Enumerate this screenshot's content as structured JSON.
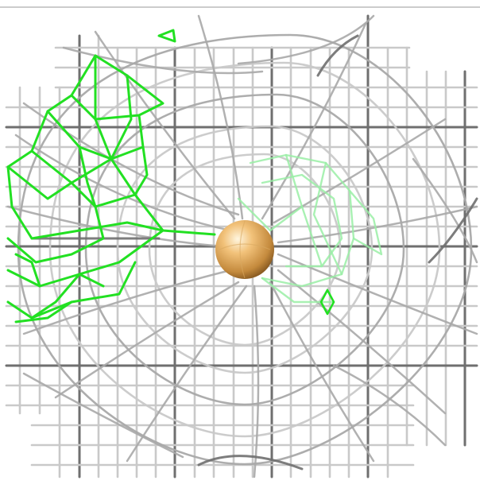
{
  "scene": {
    "kind": "3D molecular density mesh rendering",
    "background_color": "#ffffff",
    "mesh_colors": {
      "grid_light": "#c9c9c9",
      "grid_mid": "#a9a9a9",
      "grid_dark": "#6f6f6f",
      "difference_density_bright": "#22e022",
      "difference_density_faded": "#9aeea6"
    },
    "atom": {
      "name": "central-ion-sphere",
      "color": "#f2c27a"
    }
  }
}
